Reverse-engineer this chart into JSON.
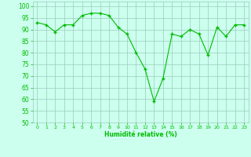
{
  "x": [
    0,
    1,
    2,
    3,
    4,
    5,
    6,
    7,
    8,
    9,
    10,
    11,
    12,
    13,
    14,
    15,
    16,
    17,
    18,
    19,
    20,
    21,
    22,
    23
  ],
  "y": [
    93,
    92,
    89,
    92,
    92,
    96,
    97,
    97,
    96,
    91,
    88,
    80,
    73,
    59,
    69,
    88,
    87,
    90,
    88,
    79,
    91,
    87,
    92,
    92
  ],
  "line_color": "#00bb00",
  "marker_color": "#00bb00",
  "background_color": "#ccffee",
  "grid_color": "#99ccbb",
  "xlabel": "Humidité relative (%)",
  "xlabel_color": "#00bb00",
  "tick_color": "#00bb00",
  "ylim": [
    50,
    102
  ],
  "yticks": [
    50,
    55,
    60,
    65,
    70,
    75,
    80,
    85,
    90,
    95,
    100
  ],
  "xlim": [
    -0.5,
    23.5
  ],
  "figsize": [
    3.2,
    2.0
  ],
  "dpi": 100
}
